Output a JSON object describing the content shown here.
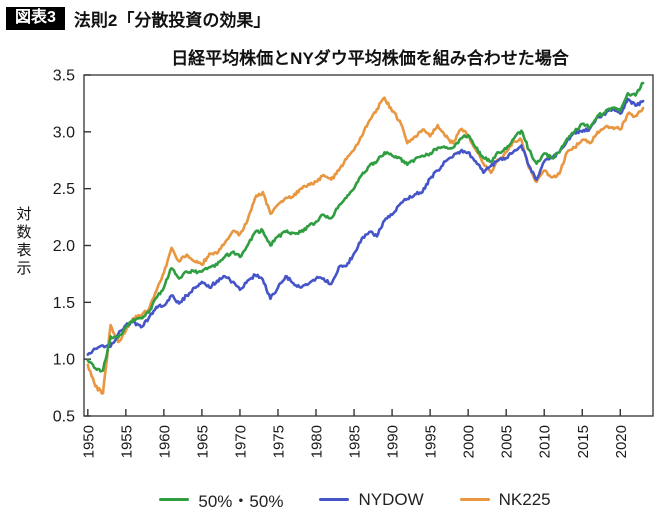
{
  "header": {
    "badge": "図表3",
    "title": "法則2「分散投資の効果」"
  },
  "chart_title": "日経平均株価とNYダウ平均株価を組み合わせた場合",
  "colors": {
    "green": "#2f9e41",
    "blue": "#4554c8",
    "orange": "#e8963f",
    "axis": "#333333",
    "text": "#1a1a1a"
  },
  "legend": {
    "items": [
      {
        "label": "50%・50%",
        "color": "#2f9e41"
      },
      {
        "label": "NYDOW",
        "color": "#4554c8"
      },
      {
        "label": "NK225",
        "color": "#e8963f"
      }
    ]
  },
  "chart_data": {
    "type": "line",
    "title": "日経平均株価とNYダウ平均株価を組み合わせた場合",
    "xlabel": "",
    "ylabel": "対数表示",
    "xlim": [
      1949.5,
      2024.3
    ],
    "ylim": [
      0.5,
      3.5
    ],
    "x_ticks": [
      1950,
      1955,
      1960,
      1965,
      1970,
      1975,
      1980,
      1985,
      1990,
      1995,
      2000,
      2005,
      2010,
      2015,
      2020
    ],
    "y_ticks": [
      0.5,
      1.0,
      1.5,
      2.0,
      2.5,
      3.0,
      3.5
    ],
    "grid": false,
    "legend_position": "bottom",
    "x": [
      1950,
      1951,
      1952,
      1953,
      1954,
      1955,
      1956,
      1957,
      1958,
      1959,
      1960,
      1961,
      1962,
      1963,
      1964,
      1965,
      1966,
      1967,
      1968,
      1969,
      1970,
      1971,
      1972,
      1973,
      1974,
      1975,
      1976,
      1977,
      1978,
      1979,
      1980,
      1981,
      1982,
      1983,
      1984,
      1985,
      1986,
      1987,
      1988,
      1989,
      1990,
      1991,
      1992,
      1993,
      1994,
      1995,
      1996,
      1997,
      1998,
      1999,
      2000,
      2001,
      2002,
      2003,
      2004,
      2005,
      2006,
      2007,
      2008,
      2009,
      2010,
      2011,
      2012,
      2013,
      2014,
      2015,
      2016,
      2017,
      2018,
      2019,
      2020,
      2021,
      2022,
      2023
    ],
    "series": [
      {
        "name": "NK225",
        "color": "#e8963f",
        "values": [
          0.95,
          0.76,
          0.7,
          1.3,
          1.15,
          1.25,
          1.36,
          1.38,
          1.44,
          1.6,
          1.76,
          1.98,
          1.86,
          1.92,
          1.86,
          1.83,
          1.93,
          1.93,
          2.02,
          2.12,
          2.1,
          2.22,
          2.42,
          2.47,
          2.28,
          2.36,
          2.42,
          2.43,
          2.5,
          2.54,
          2.56,
          2.62,
          2.58,
          2.66,
          2.76,
          2.84,
          2.96,
          3.1,
          3.2,
          3.3,
          3.18,
          3.1,
          2.9,
          2.96,
          3.02,
          2.96,
          3.06,
          2.96,
          2.9,
          3.02,
          2.97,
          2.84,
          2.72,
          2.64,
          2.76,
          2.82,
          2.92,
          2.93,
          2.68,
          2.56,
          2.66,
          2.6,
          2.63,
          2.82,
          2.86,
          2.93,
          2.9,
          3.0,
          3.04,
          3.04,
          3.02,
          3.16,
          3.14,
          3.21
        ]
      },
      {
        "name": "NYDOW",
        "color": "#4554c8",
        "values": [
          1.04,
          1.09,
          1.12,
          1.11,
          1.22,
          1.3,
          1.33,
          1.28,
          1.36,
          1.46,
          1.47,
          1.56,
          1.49,
          1.56,
          1.63,
          1.68,
          1.63,
          1.69,
          1.73,
          1.68,
          1.61,
          1.69,
          1.74,
          1.7,
          1.53,
          1.63,
          1.73,
          1.67,
          1.63,
          1.66,
          1.71,
          1.71,
          1.66,
          1.81,
          1.82,
          1.93,
          2.06,
          2.12,
          2.08,
          2.22,
          2.27,
          2.36,
          2.41,
          2.45,
          2.47,
          2.59,
          2.66,
          2.74,
          2.78,
          2.83,
          2.82,
          2.74,
          2.64,
          2.7,
          2.75,
          2.77,
          2.83,
          2.88,
          2.7,
          2.58,
          2.74,
          2.77,
          2.82,
          2.92,
          2.99,
          3.0,
          3.03,
          3.13,
          3.15,
          3.21,
          3.16,
          3.29,
          3.23,
          3.27
        ]
      },
      {
        "name": "50%・50%",
        "color": "#2f9e41",
        "values": [
          0.99,
          0.92,
          0.9,
          1.2,
          1.19,
          1.28,
          1.35,
          1.36,
          1.41,
          1.54,
          1.63,
          1.8,
          1.71,
          1.77,
          1.77,
          1.77,
          1.81,
          1.83,
          1.9,
          1.94,
          1.9,
          2.0,
          2.12,
          2.13,
          2.0,
          2.08,
          2.12,
          2.11,
          2.12,
          2.17,
          2.21,
          2.27,
          2.24,
          2.35,
          2.42,
          2.5,
          2.62,
          2.7,
          2.74,
          2.82,
          2.79,
          2.77,
          2.71,
          2.76,
          2.79,
          2.81,
          2.86,
          2.86,
          2.86,
          2.94,
          2.97,
          2.86,
          2.77,
          2.74,
          2.82,
          2.85,
          2.94,
          3.01,
          2.84,
          2.72,
          2.81,
          2.77,
          2.82,
          2.94,
          3.0,
          3.07,
          3.04,
          3.14,
          3.17,
          3.21,
          3.18,
          3.34,
          3.32,
          3.43
        ]
      }
    ]
  }
}
